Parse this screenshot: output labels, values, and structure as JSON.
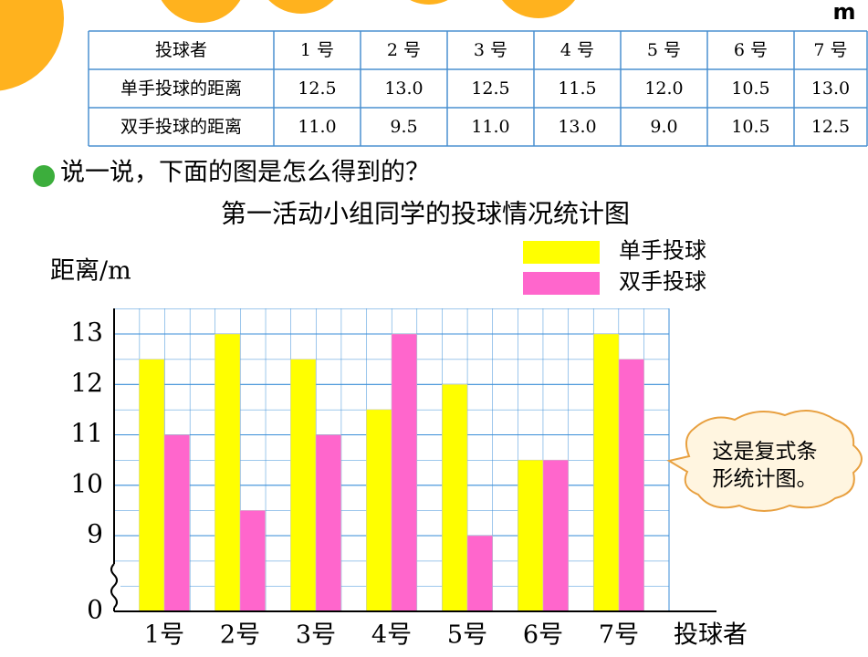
{
  "unit": "m",
  "table": {
    "header": [
      "投球者",
      "1 号",
      "2 号",
      "3 号",
      "4 号",
      "5 号",
      "6 号",
      "7 号"
    ],
    "rows": [
      [
        "单手投球的距离",
        "12.5",
        "13.0",
        "12.5",
        "11.5",
        "12.0",
        "10.5",
        "13.0"
      ],
      [
        "双手投球的距离",
        "11.0",
        "9.5",
        "11.0",
        "13.0",
        "9.0",
        "10.5",
        "12.5"
      ]
    ]
  },
  "prompt": "说一说，下面的图是怎么得到的？",
  "callout": [
    "这是复式条",
    "形统计图。"
  ],
  "chart_data": {
    "type": "bar",
    "title": "第一活动小组同学的投球情况统计图",
    "y_label": "距离/m",
    "x_label": "投球者",
    "categories": [
      "1号",
      "2号",
      "3号",
      "4号",
      "5号",
      "6号",
      "7号"
    ],
    "series": [
      {
        "name": "单手投球",
        "color": "#ffff00",
        "values": [
          12.5,
          13,
          12.5,
          11.5,
          12,
          10.5,
          13
        ]
      },
      {
        "name": "双手投球",
        "color": "#ff66cc",
        "values": [
          11,
          9.5,
          11,
          13,
          9,
          10.5,
          12.5
        ]
      }
    ],
    "ylim": [
      0,
      13
    ],
    "yticks": [
      0,
      9,
      10,
      11,
      12,
      13
    ],
    "axis_break": [
      0,
      9
    ],
    "grid": true
  }
}
